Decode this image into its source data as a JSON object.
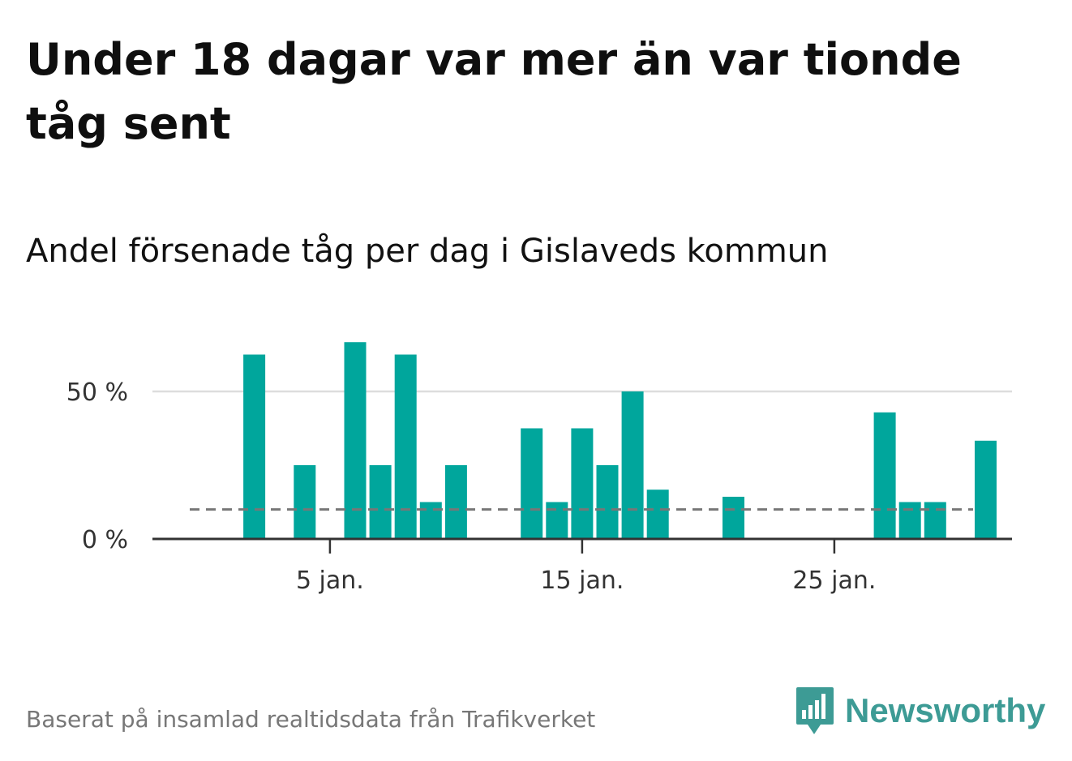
{
  "title": "Under 18 dagar var mer än var tionde tåg sent",
  "subtitle": "Andel försenade tåg per dag i Gislaveds kommun",
  "footer": "Baserat på insamlad realtidsdata från Trafikverket",
  "brand": {
    "name": "Newsworthy",
    "icon": "newsworthy-logo-icon",
    "color": "#3d9b95"
  },
  "colors": {
    "bar": "#00a69c",
    "grid": "#dddddd",
    "axis": "#333333",
    "reference": "#777777"
  },
  "chart_data": {
    "type": "bar",
    "title": "Under 18 dagar var mer än var tionde tåg sent",
    "subtitle": "Andel försenade tåg per dag i Gislaveds kommun",
    "xlabel": "",
    "ylabel": "",
    "categories": [
      "1 jan.",
      "2 jan.",
      "3 jan.",
      "4 jan.",
      "5 jan.",
      "6 jan.",
      "7 jan.",
      "8 jan.",
      "9 jan.",
      "10 jan.",
      "11 jan.",
      "12 jan.",
      "13 jan.",
      "14 jan.",
      "15 jan.",
      "16 jan.",
      "17 jan.",
      "18 jan.",
      "19 jan.",
      "20 jan.",
      "21 jan.",
      "22 jan.",
      "23 jan.",
      "24 jan.",
      "25 jan.",
      "26 jan.",
      "27 jan.",
      "28 jan.",
      "29 jan.",
      "30 jan.",
      "31 jan."
    ],
    "values": [
      0,
      62.5,
      0,
      25,
      0,
      66.7,
      25,
      62.5,
      12.5,
      25,
      0,
      0,
      37.5,
      12.5,
      37.5,
      25,
      50,
      16.7,
      0,
      0,
      14.3,
      0,
      0,
      0,
      0,
      0,
      42.9,
      12.5,
      12.5,
      0,
      33.3
    ],
    "x_ticks": [
      {
        "index": 4,
        "label": "5 jan."
      },
      {
        "index": 14,
        "label": "15 jan."
      },
      {
        "index": 24,
        "label": "25 jan."
      }
    ],
    "y_ticks": [
      {
        "value": 0,
        "label": "0 %"
      },
      {
        "value": 50,
        "label": "50 %"
      }
    ],
    "ylim": [
      0,
      70
    ],
    "reference_line": {
      "value": 10,
      "style": "dashed"
    },
    "grid": true,
    "legend": "none"
  }
}
